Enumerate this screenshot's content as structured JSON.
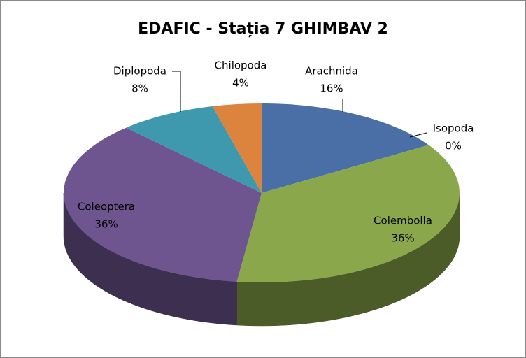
{
  "chart_data": {
    "type": "pie3d",
    "title": "EDAFIC - Stația 7 GHIMBAV 2",
    "categories": [
      "Arachnida",
      "Isopoda",
      "Colembolla",
      "Coleoptera",
      "Diplopoda",
      "Chilopoda"
    ],
    "values": [
      16,
      0,
      36,
      36,
      8,
      4
    ],
    "value_labels": [
      "16%",
      "0%",
      "36%",
      "36%",
      "8%",
      "4%"
    ],
    "colors": [
      "#4a6fa6",
      "#b94a48",
      "#8aa84b",
      "#6f5590",
      "#3e98ae",
      "#dc843d"
    ]
  }
}
